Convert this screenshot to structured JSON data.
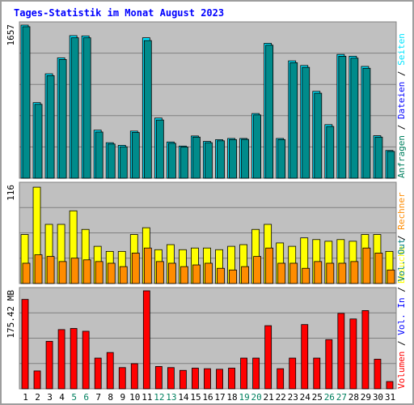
{
  "chart_data": [
    {
      "type": "bar",
      "title": "Tages-Statistik im Monat August 2023",
      "ylabel": "1657",
      "ylim": [
        0,
        1657
      ],
      "side_labels": [
        "Anfragen",
        "Dateien",
        "Seiten"
      ],
      "side_separator": "/",
      "series": [
        {
          "name": "Anfragen",
          "color": "#00e5ff",
          "values": [
            1657,
            818,
            1130,
            1303,
            1543,
            1540,
            520,
            384,
            356,
            510,
            1520,
            651,
            392,
            348,
            457,
            398,
            417,
            430,
            430,
            700,
            1460,
            430,
            1270,
            1220,
            940,
            580,
            1340,
            1320,
            1210,
            460,
            300
          ]
        },
        {
          "name": "Dateien",
          "color": "#008b8b",
          "values": [
            1640,
            800,
            1110,
            1285,
            1520,
            1520,
            500,
            370,
            340,
            495,
            1490,
            630,
            378,
            338,
            445,
            385,
            405,
            418,
            420,
            685,
            1440,
            418,
            1250,
            1200,
            920,
            560,
            1320,
            1300,
            1190,
            445,
            290
          ]
        }
      ]
    },
    {
      "type": "bar",
      "ylabel": "116",
      "ylim": [
        0,
        116
      ],
      "side_labels": [
        "Besuche",
        "Rechner"
      ],
      "side_separator": "/",
      "series": [
        {
          "name": "Besuche",
          "color": "#ffff00",
          "values": [
            58,
            114,
            70,
            70,
            86,
            64,
            44,
            38,
            38,
            58,
            66,
            40,
            46,
            40,
            42,
            42,
            40,
            44,
            46,
            64,
            70,
            48,
            44,
            54,
            52,
            50,
            52,
            50,
            58,
            58,
            38
          ]
        },
        {
          "name": "Rechner",
          "color": "#ff8c00",
          "values": [
            24,
            34,
            32,
            26,
            30,
            28,
            26,
            24,
            20,
            36,
            42,
            26,
            24,
            20,
            22,
            24,
            18,
            16,
            20,
            32,
            42,
            24,
            24,
            18,
            26,
            24,
            24,
            26,
            42,
            36,
            16
          ]
        }
      ]
    },
    {
      "type": "bar",
      "ylabel": "175.42 MB",
      "ylim": [
        0,
        175.42
      ],
      "side_labels": [
        "Volumen",
        "Vol. In",
        "Vol. Out"
      ],
      "side_separator": "/",
      "series": [
        {
          "name": "Volumen",
          "color": "#ff0000",
          "values": [
            160,
            32,
            85,
            106,
            108,
            103,
            55,
            65,
            38,
            45,
            175.42,
            40,
            38,
            33,
            37,
            36,
            35,
            37,
            55,
            55,
            113,
            36,
            55,
            115,
            55,
            88,
            135,
            125,
            140,
            53,
            13
          ]
        }
      ]
    }
  ],
  "x_categories": [
    "1",
    "2",
    "3",
    "4",
    "5",
    "6",
    "7",
    "8",
    "9",
    "10",
    "11",
    "12",
    "13",
    "14",
    "15",
    "16",
    "17",
    "18",
    "19",
    "20",
    "21",
    "22",
    "23",
    "24",
    "25",
    "26",
    "27",
    "28",
    "29",
    "30",
    "31"
  ],
  "weekend_days": [
    "5",
    "6",
    "12",
    "13",
    "19",
    "20",
    "26",
    "27"
  ],
  "colors": {
    "title": "#0000ff",
    "background": "#ffffff",
    "frame": "#9e9e9e",
    "panel": "#c0c0c0",
    "grid": "#808080",
    "weekday_tick": "#000000",
    "weekend_tick": "#00805f",
    "side_volumen": "#ff0000",
    "side_volin": "#0000ff",
    "side_volout": "#008080"
  }
}
